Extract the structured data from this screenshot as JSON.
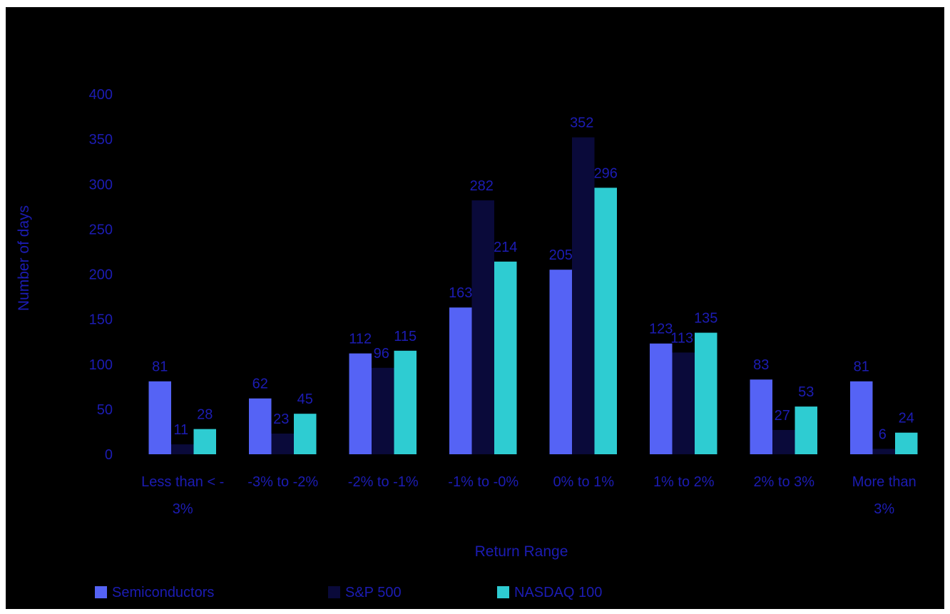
{
  "chart_data": {
    "type": "bar",
    "categories": [
      "Less than < - 3%",
      "-3% to -2%",
      "-2% to -1%",
      "-1% to -0%",
      "0% to 1%",
      "1% to 2%",
      "2% to 3%",
      "More than 3%"
    ],
    "category_lines": [
      [
        "Less than < -",
        "3%"
      ],
      [
        "-3% to -2%"
      ],
      [
        "-2% to -1%"
      ],
      [
        "-1% to -0%"
      ],
      [
        "0% to 1%"
      ],
      [
        "1% to 2%"
      ],
      [
        "2% to 3%"
      ],
      [
        "More than",
        "3%"
      ]
    ],
    "series": [
      {
        "name": "Semiconductors",
        "values": [
          81,
          62,
          112,
          163,
          205,
          123,
          83,
          81
        ],
        "color": "#5563F5"
      },
      {
        "name": "S&P 500",
        "values": [
          11,
          23,
          96,
          282,
          352,
          113,
          27,
          6
        ],
        "color": "#0A0A3A"
      },
      {
        "name": "NASDAQ 100",
        "values": [
          28,
          45,
          115,
          214,
          296,
          135,
          53,
          24
        ],
        "color": "#2ECCD2"
      }
    ],
    "xlabel": "Return Range",
    "ylabel": "Number of days",
    "ylim": [
      0,
      400
    ],
    "yticks": [
      0,
      50,
      100,
      150,
      200,
      250,
      300,
      350,
      400
    ],
    "grid": false,
    "legend": "bottom-left",
    "colors": {
      "background": "#000000",
      "text": "#1C1CB3",
      "frame": "#ffffff"
    }
  }
}
